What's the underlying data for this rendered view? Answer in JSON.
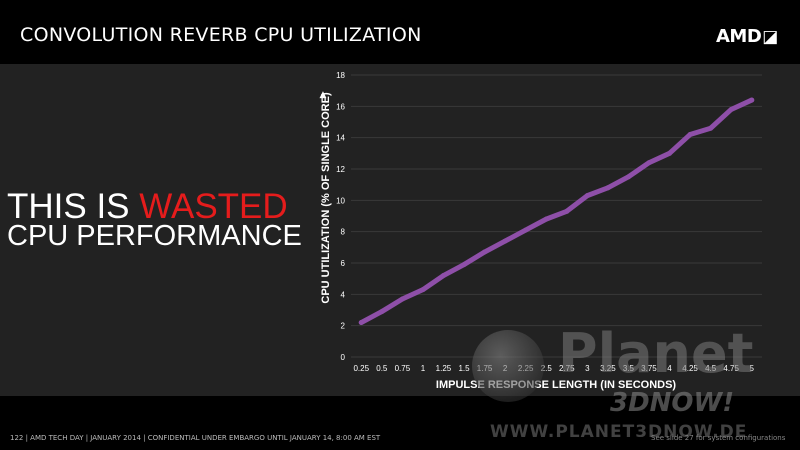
{
  "slide": {
    "title": "CONVOLUTION REVERB CPU UTILIZATION",
    "logo_text": "AMD",
    "logo_mark": "◪",
    "headline_prefix": "THIS IS ",
    "headline_accent": "WASTED",
    "headline_line2": "CPU PERFORMANCE",
    "footer": "122  |  AMD TECH DAY  |  JANUARY 2014  |  CONFIDENTIAL UNDER EMBARGO UNTIL JANUARY 14, 8:00 AM EST",
    "footnote": "See slide 27 for system configurations"
  },
  "watermark": {
    "word": "Planet",
    "sub": "3DNOW!",
    "url": "WWW.PLANET3DNOW.DE"
  },
  "colors": {
    "accent": "#e51c1c",
    "line": "#8e4fa8",
    "title_bar": "#000000",
    "content_bg": "#222222",
    "grid": "#3a3a3a"
  },
  "chart_data": {
    "type": "line",
    "title": "",
    "xlabel": "IMPULSE RESPONSE LENGTH (IN SECONDS)",
    "ylabel": "CPU UTILIZATION (% OF SINGLE CORE)",
    "ylabel_arrow": "▲",
    "x": [
      "0.25",
      "0.5",
      "0.75",
      "1",
      "1.25",
      "1.5",
      "1.75",
      "2",
      "2.25",
      "2.5",
      "2.75",
      "3",
      "3.25",
      "3.5",
      "3.75",
      "4",
      "4.25",
      "4.5",
      "4.75",
      "5"
    ],
    "series": [
      {
        "values": [
          2.2,
          2.9,
          3.7,
          4.3,
          5.2,
          5.9,
          6.7,
          7.4,
          8.1,
          8.8,
          9.3,
          10.3,
          10.8,
          11.5,
          12.4,
          13.0,
          14.2,
          14.6,
          15.8,
          16.4
        ]
      }
    ],
    "ylim": [
      0,
      18
    ],
    "yticks": [
      0,
      2,
      4,
      6,
      8,
      10,
      12,
      14,
      16,
      18
    ],
    "grid": true,
    "legend": "none"
  }
}
